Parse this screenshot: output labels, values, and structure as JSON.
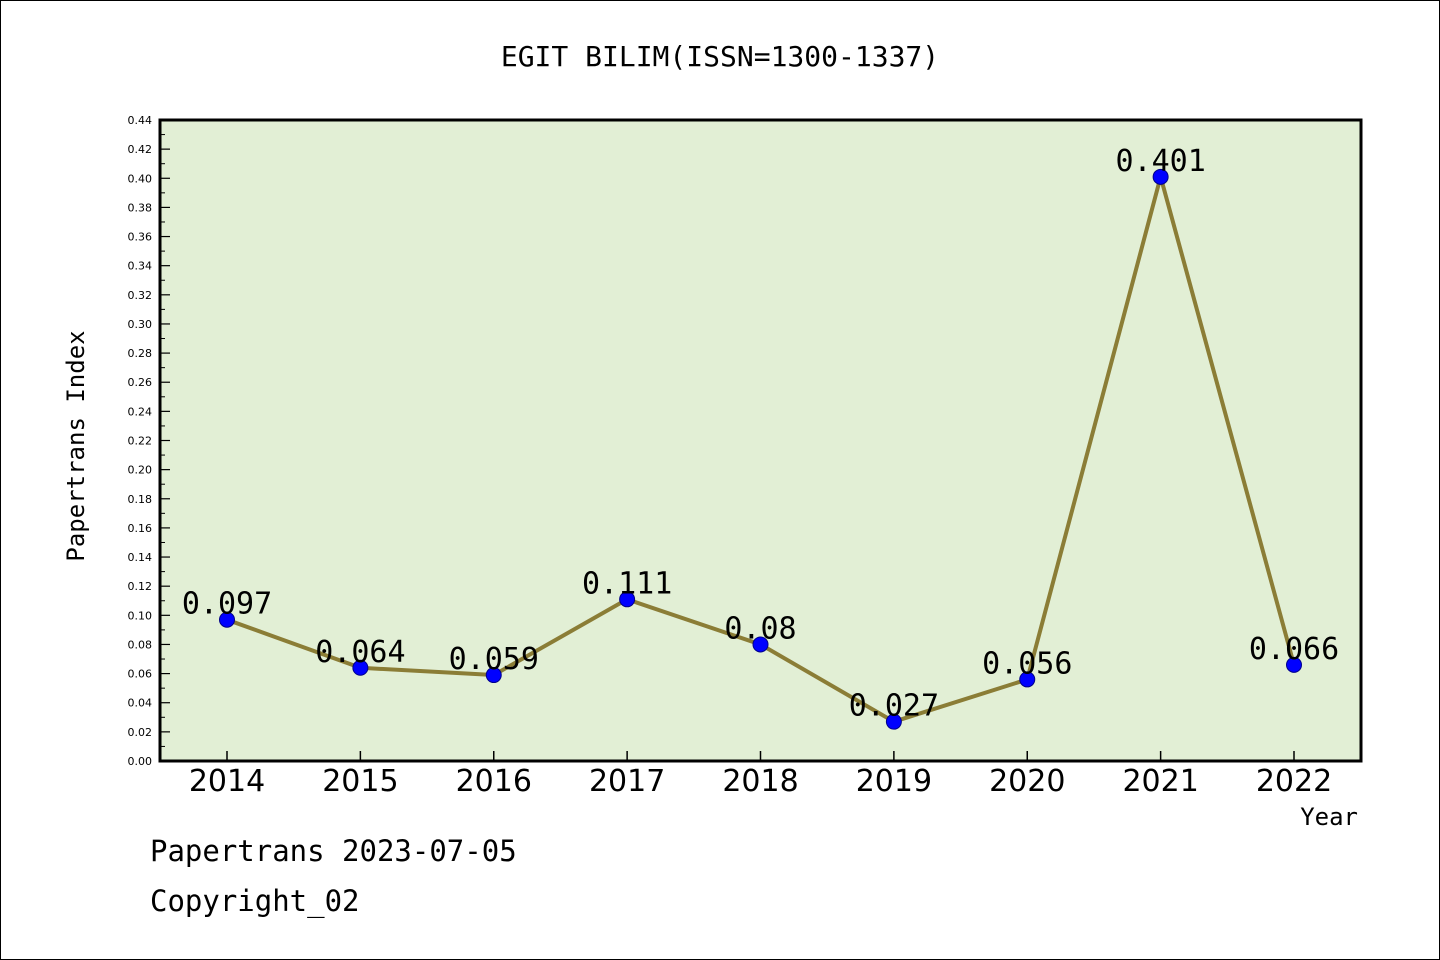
{
  "chart_data": {
    "type": "line",
    "title": "EGIT BILIM(ISSN=1300-1337)",
    "xlabel": "Year",
    "ylabel": "Papertrans Index",
    "categories": [
      "2014",
      "2015",
      "2016",
      "2017",
      "2018",
      "2019",
      "2020",
      "2021",
      "2022"
    ],
    "values": [
      0.097,
      0.064,
      0.059,
      0.111,
      0.08,
      0.027,
      0.056,
      0.401,
      0.066
    ],
    "data_labels": [
      "0.097",
      "0.064",
      "0.059",
      "0.111",
      "0.08",
      "0.027",
      "0.056",
      "0.401",
      "0.066"
    ],
    "ylim": [
      0,
      0.44
    ],
    "yticks": [
      "0.00",
      "0.02",
      "0.04",
      "0.06",
      "0.08",
      "0.10",
      "0.12",
      "0.14",
      "0.16",
      "0.18",
      "0.20",
      "0.22",
      "0.24",
      "0.26",
      "0.28",
      "0.30",
      "0.32",
      "0.34",
      "0.36",
      "0.38",
      "0.40",
      "0.42",
      "0.44"
    ],
    "grid": false,
    "colors": {
      "plot_background": "#e2efd5",
      "line": "#8b7d36",
      "marker": "#0000ff"
    }
  },
  "footer": {
    "date_line": "Papertrans 2023-07-05",
    "copyright": "Copyright_02"
  }
}
